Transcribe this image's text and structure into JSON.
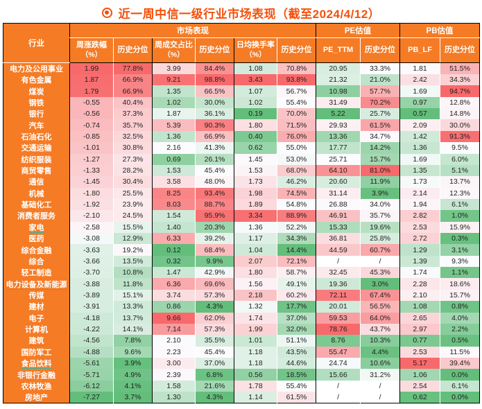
{
  "title": {
    "icon": "bullseye-icon",
    "text": "近一周中信一级行业市场表现（截至2024/4/12）"
  },
  "colors": {
    "header_bg": "#F57B25",
    "title": "#F4500B",
    "scale_max_red": "#F8696B",
    "scale_mid_white": "#FCFCFF",
    "scale_min_green": "#63BE7B",
    "underline_teal": "#2FB8A8",
    "border_black": "#000000",
    "cell_text": "#1F1F1F"
  },
  "header": {
    "industry": "行业",
    "groups": [
      {
        "label": "市场表现",
        "span": 6
      },
      {
        "label": "PE估值",
        "span": 2
      },
      {
        "label": "PB估值",
        "span": 2
      }
    ],
    "subcolumns": [
      {
        "text": "周涨跌幅",
        "sub": "（%）"
      },
      {
        "text": "历史分位",
        "sub": ""
      },
      {
        "text": "周成交占比",
        "sub": "（%）"
      },
      {
        "text": "历史分位",
        "sub": ""
      },
      {
        "text": "日均换手率",
        "sub": "（%）"
      },
      {
        "text": "历史分位",
        "sub": ""
      },
      {
        "text": "PE_TTM",
        "sub": ""
      },
      {
        "text": "历史分位",
        "sub": ""
      },
      {
        "text": "PB_LF",
        "sub": ""
      },
      {
        "text": "历史分位",
        "sub": ""
      }
    ]
  },
  "chart_data": {
    "type": "table",
    "title": "近一周中信一级行业市场表现（截至2024/4/12）",
    "columns": [
      "行业",
      "周涨跌幅（%）",
      "周涨跌幅历史分位",
      "周成交占比（%）",
      "周成交占比历史分位",
      "日均换手率（%）",
      "日均换手率历史分位",
      "PE_TTM",
      "PE历史分位",
      "PB_LF",
      "PB历史分位"
    ],
    "percent_column_indices": [
      2,
      4,
      6,
      8,
      10
    ],
    "color_scale": "per-column 3-color: min=green, median=white, max=red",
    "underlined_industries": [
      "家电",
      "电力设备及新能源",
      "建筑",
      "食品饮料"
    ],
    "rows": [
      [
        "电力及公用事业",
        1.99,
        77.8,
        3.99,
        84.4,
        1.08,
        70.8,
        20.95,
        33.3,
        1.81,
        51.5
      ],
      [
        "有色金属",
        1.87,
        66.9,
        9.21,
        98.8,
        3.43,
        93.8,
        21.32,
        21.0,
        2.42,
        34.3
      ],
      [
        "煤炭",
        1.79,
        66.9,
        1.35,
        66.5,
        1.07,
        56.7,
        10.98,
        57.7,
        1.69,
        94.7
      ],
      [
        "钢铁",
        -0.55,
        40.4,
        1.02,
        30.0,
        1.02,
        55.4,
        31.49,
        70.2,
        0.97,
        12.8
      ],
      [
        "银行",
        -0.56,
        37.3,
        1.87,
        36.1,
        0.19,
        70.0,
        5.22,
        25.7,
        0.57,
        14.8
      ],
      [
        "汽车",
        -0.74,
        35.7,
        5.39,
        90.3,
        1.8,
        71.5,
        29.93,
        61.5,
        2.09,
        30.0
      ],
      [
        "石油石化",
        -0.85,
        32.5,
        1.36,
        66.9,
        0.4,
        76.0,
        13.36,
        34.7,
        1.42,
        91.3
      ],
      [
        "交通运输",
        -1.01,
        30.8,
        2.16,
        41.3,
        0.62,
        55.0,
        17.77,
        14.2,
        1.36,
        9.5
      ],
      [
        "纺织服装",
        -1.27,
        27.3,
        0.69,
        26.1,
        1.45,
        53.0,
        25.71,
        15.7,
        1.69,
        6.0
      ],
      [
        "商贸零售",
        -1.33,
        28.2,
        1.53,
        45.4,
        1.53,
        68.0,
        64.1,
        81.0,
        1.35,
        5.1
      ],
      [
        "通信",
        -1.45,
        30.4,
        3.58,
        48.0,
        1.73,
        46.2,
        20.6,
        11.9,
        1.73,
        13.7
      ],
      [
        "机械",
        -1.8,
        25.5,
        8.25,
        93.4,
        1.98,
        74.5,
        31.14,
        3.9,
        2.14,
        12.3
      ],
      [
        "基础化工",
        -1.92,
        23.9,
        8.03,
        88.7,
        1.89,
        54.8,
        26.88,
        34.0,
        1.94,
        6.1
      ],
      [
        "消费者服务",
        -2.1,
        24.5,
        1.54,
        95.9,
        3.34,
        88.9,
        46.91,
        35.7,
        2.82,
        1.0
      ],
      [
        "家电",
        -2.58,
        15.5,
        1.4,
        20.3,
        1.36,
        52.2,
        15.33,
        19.6,
        2.53,
        15.9
      ],
      [
        "医药",
        -3.08,
        12.9,
        6.33,
        39.2,
        1.17,
        34.3,
        36.81,
        25.8,
        2.72,
        0.3
      ],
      [
        "综合金融",
        -3.63,
        19.2,
        0.12,
        68.4,
        1.04,
        14.4,
        44.59,
        60.7,
        1.29,
        3.1
      ],
      [
        "综合",
        -3.66,
        13.5,
        0.32,
        9.9,
        2.07,
        72.1,
        "/",
        "/",
        1.39,
        9.3
      ],
      [
        "轻工制造",
        -3.7,
        10.8,
        1.47,
        42.9,
        1.8,
        58.7,
        32.45,
        45.3,
        1.74,
        1.1
      ],
      [
        "电力设备及新能源",
        -3.88,
        11.8,
        6.36,
        69.6,
        1.56,
        49.1,
        19.36,
        3.0,
        2.28,
        18.6
      ],
      [
        "传媒",
        -3.89,
        15.1,
        3.74,
        57.3,
        2.18,
        60.2,
        72.11,
        67.4,
        2.1,
        15.7
      ],
      [
        "建材",
        -3.91,
        13.3,
        0.86,
        4.3,
        1.32,
        17.7,
        20.01,
        56.5,
        1.08,
        0.8
      ],
      [
        "电子",
        -4.18,
        13.7,
        9.66,
        62.0,
        1.74,
        37.0,
        59.53,
        64.0,
        2.65,
        4.0
      ],
      [
        "计算机",
        -4.22,
        14.1,
        7.14,
        57.3,
        1.99,
        32.0,
        78.76,
        43.7,
        2.97,
        2.2
      ],
      [
        "建筑",
        -4.56,
        7.8,
        2.1,
        35.5,
        1.01,
        51.1,
        8.76,
        10.3,
        0.77,
        0.5
      ],
      [
        "国防军工",
        -4.88,
        9.6,
        2.23,
        45.4,
        1.18,
        43.5,
        55.47,
        4.4,
        2.53,
        11.5
      ],
      [
        "食品饮料",
        -5.61,
        3.9,
        3.0,
        37.0,
        1.18,
        44.6,
        24.74,
        10.6,
        5.17,
        39.4
      ],
      [
        "非银行金融",
        -5.71,
        4.9,
        2.39,
        6.8,
        0.56,
        18.5,
        15.66,
        31.2,
        1.06,
        0.0
      ],
      [
        "农林牧渔",
        -6.12,
        4.1,
        1.58,
        21.6,
        1.78,
        55.4,
        "/",
        "/",
        2.54,
        6.1
      ],
      [
        "房地产",
        -7.27,
        3.7,
        1.3,
        4.3,
        1.14,
        61.5,
        "/",
        "/",
        0.62,
        0.0
      ]
    ]
  }
}
